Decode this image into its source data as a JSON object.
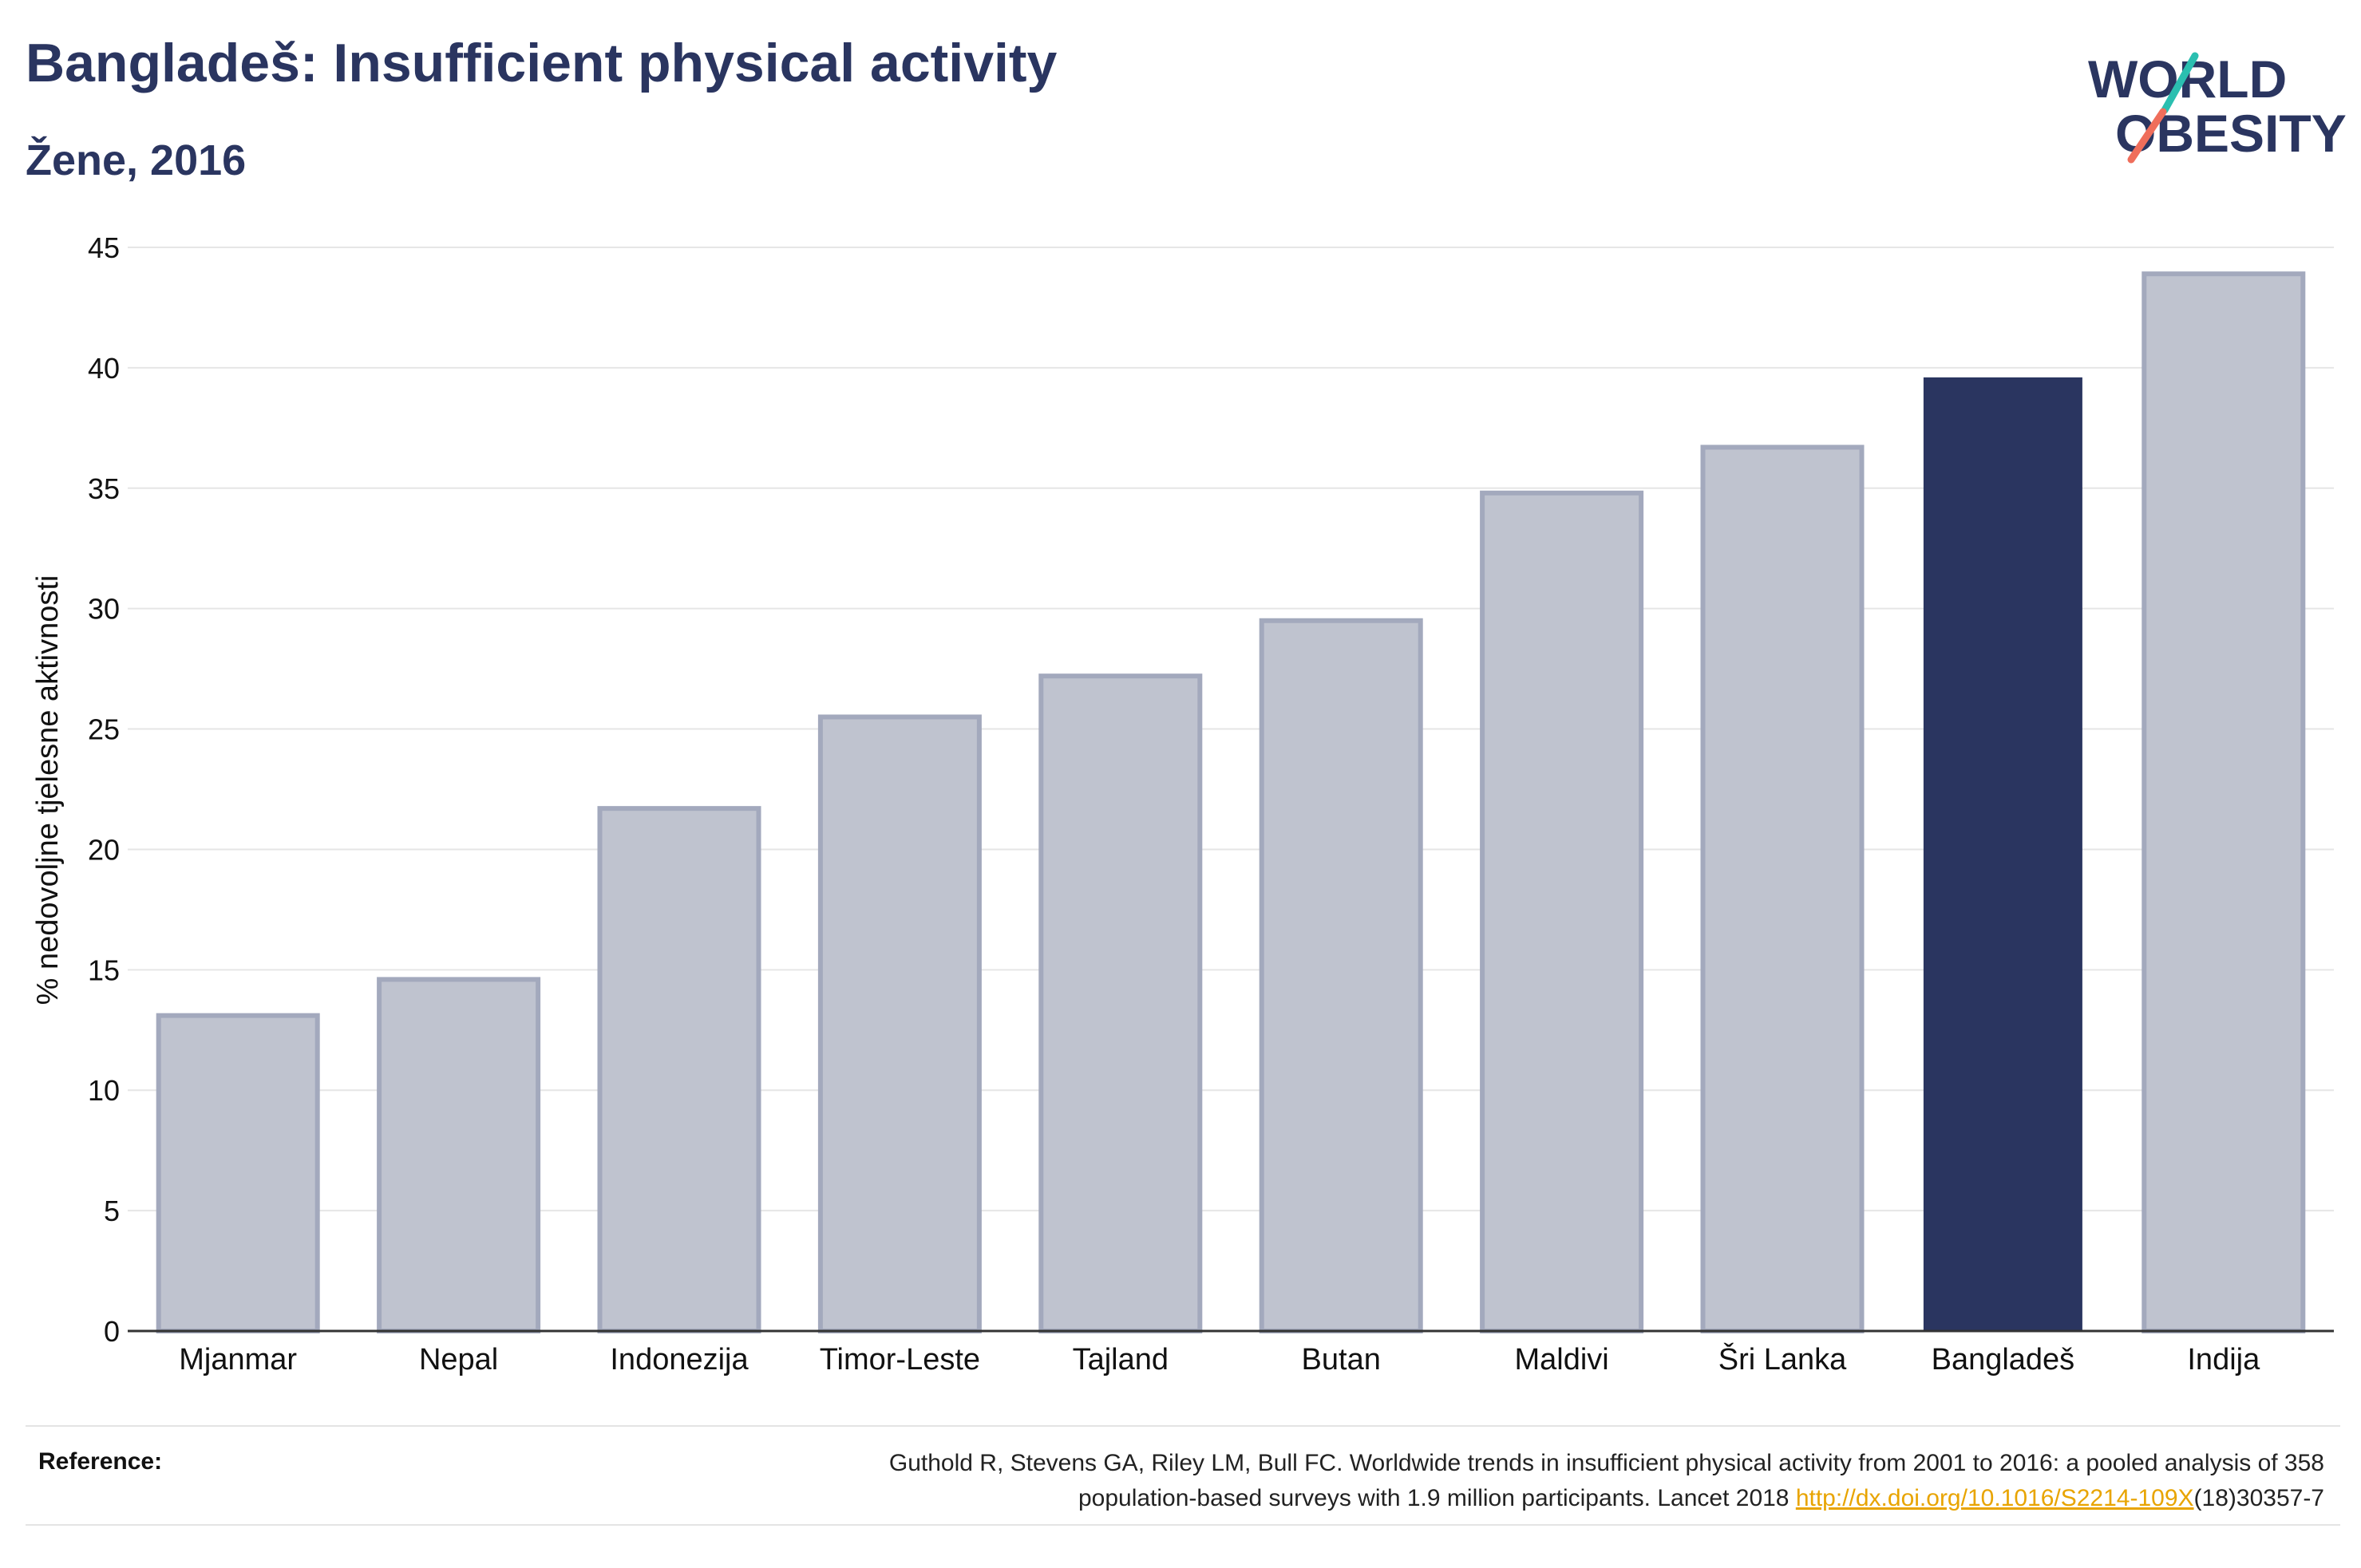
{
  "header": {
    "title": "Bangladeš: Insufficient physical activity",
    "subtitle": "Žene, 2016"
  },
  "logo": {
    "line1": "WORLD",
    "line2": "OBESITY",
    "colors": {
      "text": "#2a3560",
      "slash_teal": "#2bbfb0",
      "slash_coral": "#ef6e5b"
    }
  },
  "reference": {
    "label": "Reference:",
    "text_line1": "Guthold R, Stevens GA, Riley LM, Bull FC. Worldwide trends in insufficient physical activity from 2001 to 2016: a pooled analysis of 358",
    "text_line2_pre": "population-based surveys with 1.9 million participants. Lancet 2018 ",
    "link": "http://dx.doi.org/10.1016/S2214-109X",
    "text_line2_post": "(18)30357-7"
  },
  "chart_data": {
    "type": "bar",
    "title": "Bangladeš: Insufficient physical activity",
    "subtitle": "Žene, 2016",
    "xlabel": "",
    "ylabel": "% nedovoljne tjelesne aktivnosti",
    "ylim": [
      0,
      45
    ],
    "yticks": [
      0,
      5,
      10,
      15,
      20,
      25,
      30,
      35,
      40,
      45
    ],
    "grid": true,
    "categories": [
      "Mjanmar",
      "Nepal",
      "Indonezija",
      "Timor-Leste",
      "Tajland",
      "Butan",
      "Maldivi",
      "Šri Lanka",
      "Bangladeš",
      "Indija"
    ],
    "values": [
      13.1,
      14.6,
      21.7,
      25.5,
      27.2,
      29.5,
      34.8,
      36.7,
      39.6,
      43.9
    ],
    "highlight": "Bangladeš",
    "colors": {
      "bar": "#bfc3cf",
      "bar_edge": "#a3a9bd",
      "highlight": "#2a3560",
      "grid": "#e6e6e6",
      "axis": "#333333"
    }
  }
}
